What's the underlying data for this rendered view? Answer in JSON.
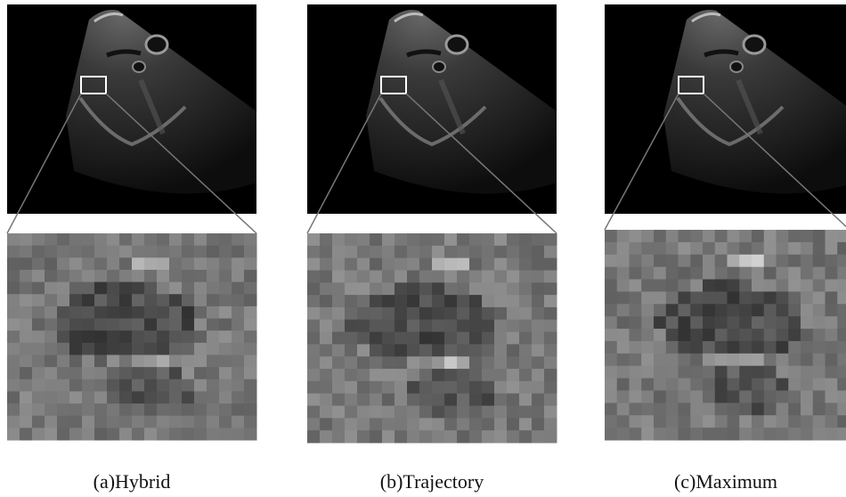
{
  "panels": [
    {
      "caption": "(a)Hybrid"
    },
    {
      "caption": "(b)Trajectory"
    },
    {
      "caption": "(c)Maximum"
    }
  ]
}
